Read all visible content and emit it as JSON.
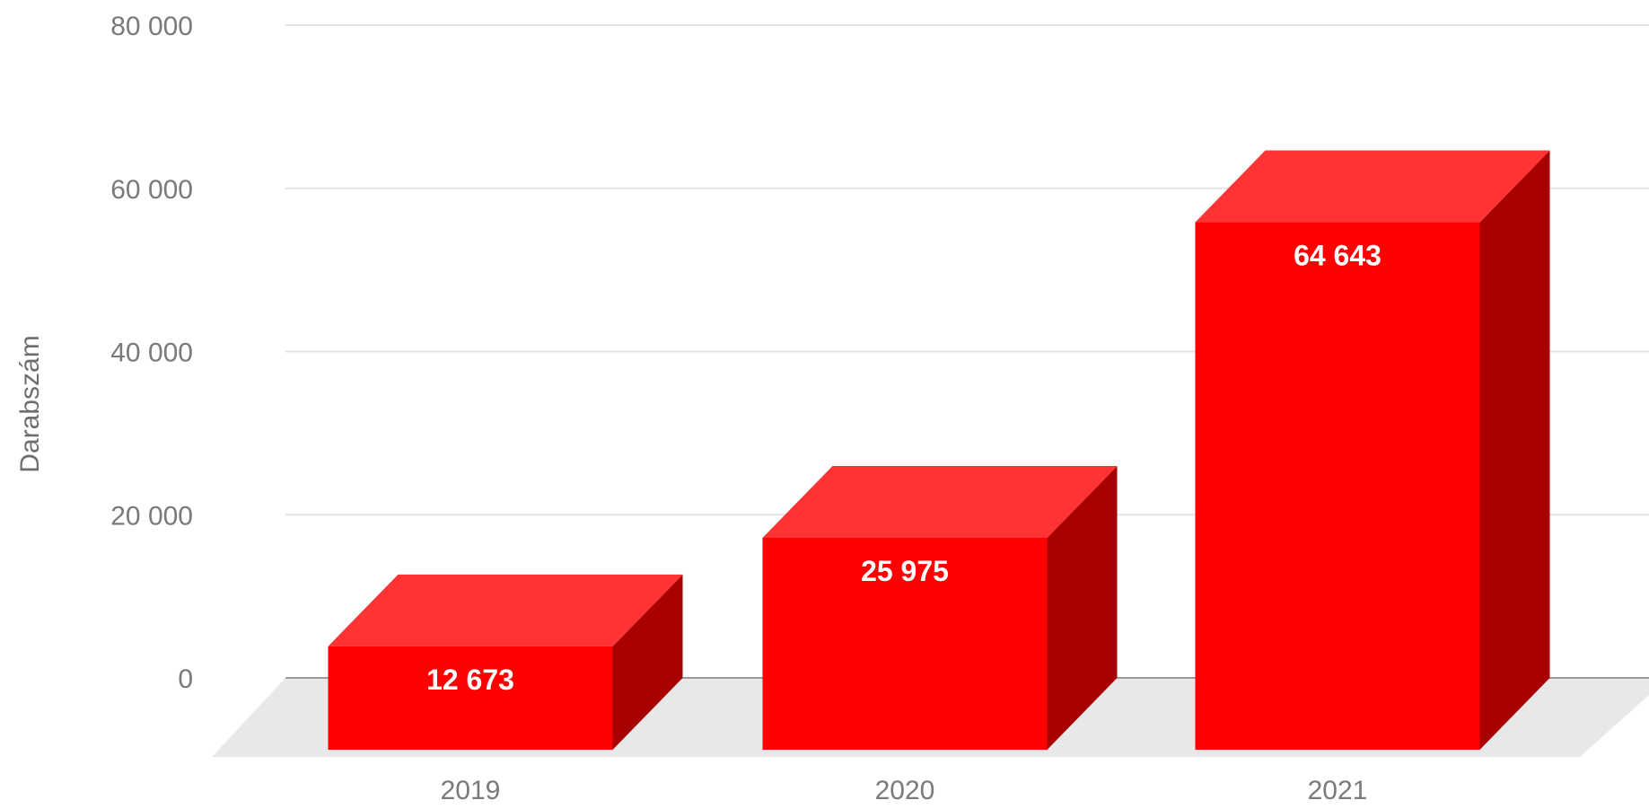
{
  "chart_data": {
    "type": "bar",
    "categories": [
      "2019",
      "2020",
      "2021"
    ],
    "values": [
      12673,
      25975,
      64643
    ],
    "data_labels": [
      "12 673",
      "25 975",
      "64 643"
    ],
    "title": "",
    "xlabel": "",
    "ylabel": "Darabszám",
    "ylim": [
      0,
      80000
    ],
    "yticks": [
      0,
      20000,
      40000,
      60000,
      80000
    ],
    "ytick_labels": [
      "0",
      "20 000",
      "40 000",
      "60 000",
      "80 000"
    ],
    "grid": true,
    "legend": "none",
    "style": "3d",
    "colors": {
      "bar_front": "#ff0000",
      "bar_top": "#ff3333",
      "bar_side": "#a80000",
      "floor": "#e8e8e8",
      "gridline": "#e2e2e2",
      "baseline": "#9a9a9a"
    }
  }
}
